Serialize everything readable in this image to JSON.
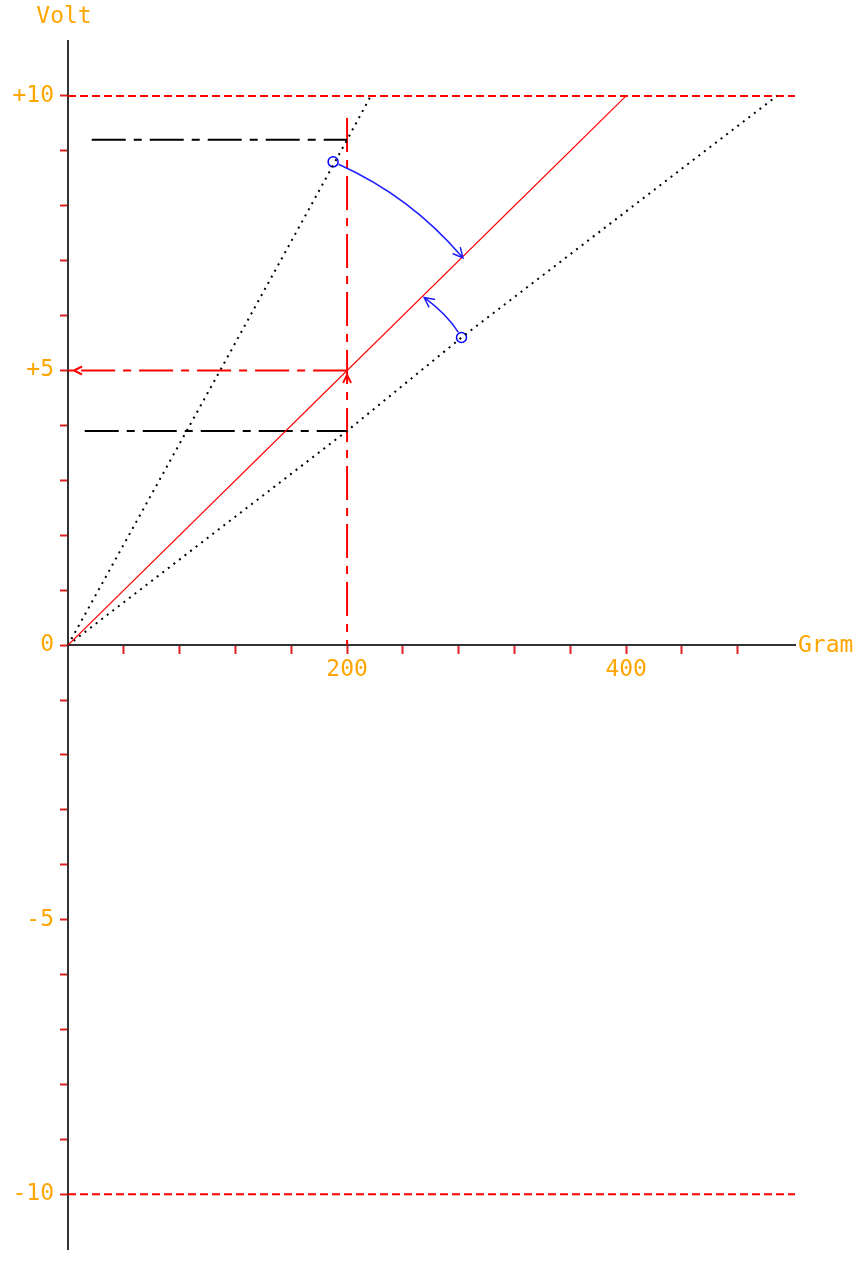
{
  "chart_data": {
    "type": "line",
    "xlabel": "Gram",
    "ylabel": "Volt",
    "xlim": [
      0,
      521
    ],
    "ylim": [
      -11,
      11
    ],
    "xticks": [
      {
        "value": 40,
        "label": null
      },
      {
        "value": 80,
        "label": null
      },
      {
        "value": 120,
        "label": null
      },
      {
        "value": 160,
        "label": null
      },
      200,
      {
        "value": 240,
        "label": null
      },
      {
        "value": 280,
        "label": null
      },
      {
        "value": 320,
        "label": null
      },
      {
        "value": 360,
        "label": null
      },
      400,
      {
        "value": 440,
        "label": null
      },
      {
        "value": 480,
        "label": null
      }
    ],
    "yticks": [
      -10,
      {
        "value": -9,
        "label": null
      },
      {
        "value": -8,
        "label": null
      },
      {
        "value": -7,
        "label": null
      },
      {
        "value": -6,
        "label": null
      },
      -5,
      {
        "value": -4,
        "label": null
      },
      {
        "value": -3,
        "label": null
      },
      {
        "value": -2,
        "label": null
      },
      {
        "value": -1,
        "label": null
      },
      0,
      {
        "value": 1,
        "label": null
      },
      {
        "value": 2,
        "label": null
      },
      {
        "value": 3,
        "label": null
      },
      {
        "value": 4,
        "label": null
      },
      {
        "value": 5,
        "label": "+5"
      },
      {
        "value": 6,
        "label": null
      },
      {
        "value": 7,
        "label": null
      },
      {
        "value": 8,
        "label": null
      },
      {
        "value": 9,
        "label": null
      },
      {
        "value": 10,
        "label": "+10"
      }
    ],
    "series": [
      {
        "color": "#ff0000",
        "line_style": "solid",
        "x": [
          0,
          400
        ],
        "values": [
          0,
          10
        ]
      },
      {
        "color": "#000000",
        "line_style": "dotted",
        "x": [
          0,
          109,
          200,
          217
        ],
        "values": [
          0,
          5,
          9.2,
          10
        ]
      },
      {
        "color": "#000000",
        "line_style": "dotted",
        "x": [
          0,
          200,
          282,
          508
        ],
        "values": [
          0,
          3.9,
          5.6,
          10
        ]
      },
      {
        "color": "#000000",
        "line_style": "dashdot",
        "x": [
          17,
          200
        ],
        "values": [
          9.2,
          9.2
        ]
      },
      {
        "color": "#000000",
        "line_style": "dashdot",
        "x": [
          12,
          200
        ],
        "values": [
          3.9,
          3.9
        ]
      },
      {
        "color": "#ff0000",
        "line_style": "dashdot",
        "x": [
          200,
          200
        ],
        "values": [
          9.6,
          0
        ]
      },
      {
        "color": "#ff0000",
        "line_style": "dashdot",
        "x": [
          200,
          0
        ],
        "values": [
          5,
          5
        ]
      },
      {
        "type": "scatter",
        "color": "#0000ff",
        "marker": "circle",
        "x": [
          190,
          282
        ],
        "values": [
          8.8,
          5.6
        ]
      }
    ],
    "ref_lines": [
      {
        "axis": "y",
        "value": 10,
        "color": "#ff0000",
        "line_style": "dashed"
      },
      {
        "axis": "y",
        "value": -10,
        "color": "#ff0000",
        "line_style": "dashed"
      }
    ]
  }
}
